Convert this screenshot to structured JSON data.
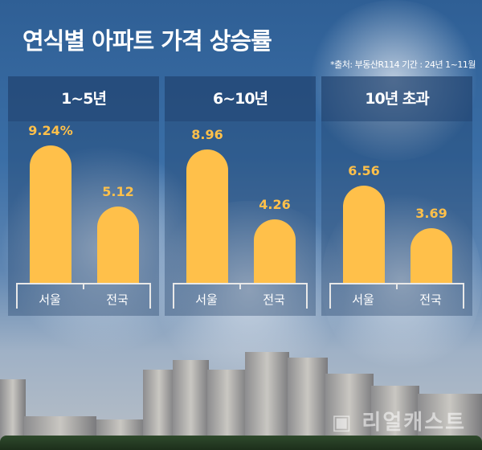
{
  "title": "연식별 아파트 가격 상승률",
  "source": "*출처: 부동산R114 기간 : 24년 1~11월",
  "watermark": "리얼캐스트",
  "colors": {
    "bar": "#ffc04a",
    "background": "#3a6ea6"
  },
  "chart_data": [
    {
      "type": "bar",
      "title": "1~5년",
      "categories": [
        "서울",
        "전국"
      ],
      "values": [
        9.24,
        5.12
      ],
      "labels": [
        "9.24%",
        "5.12"
      ],
      "unit": "%"
    },
    {
      "type": "bar",
      "title": "6~10년",
      "categories": [
        "서울",
        "전국"
      ],
      "values": [
        8.96,
        4.26
      ],
      "labels": [
        "8.96",
        "4.26"
      ],
      "unit": "%"
    },
    {
      "type": "bar",
      "title": "10년 초과",
      "categories": [
        "서울",
        "전국"
      ],
      "values": [
        6.56,
        3.69
      ],
      "labels": [
        "6.56",
        "3.69"
      ],
      "unit": "%"
    }
  ]
}
